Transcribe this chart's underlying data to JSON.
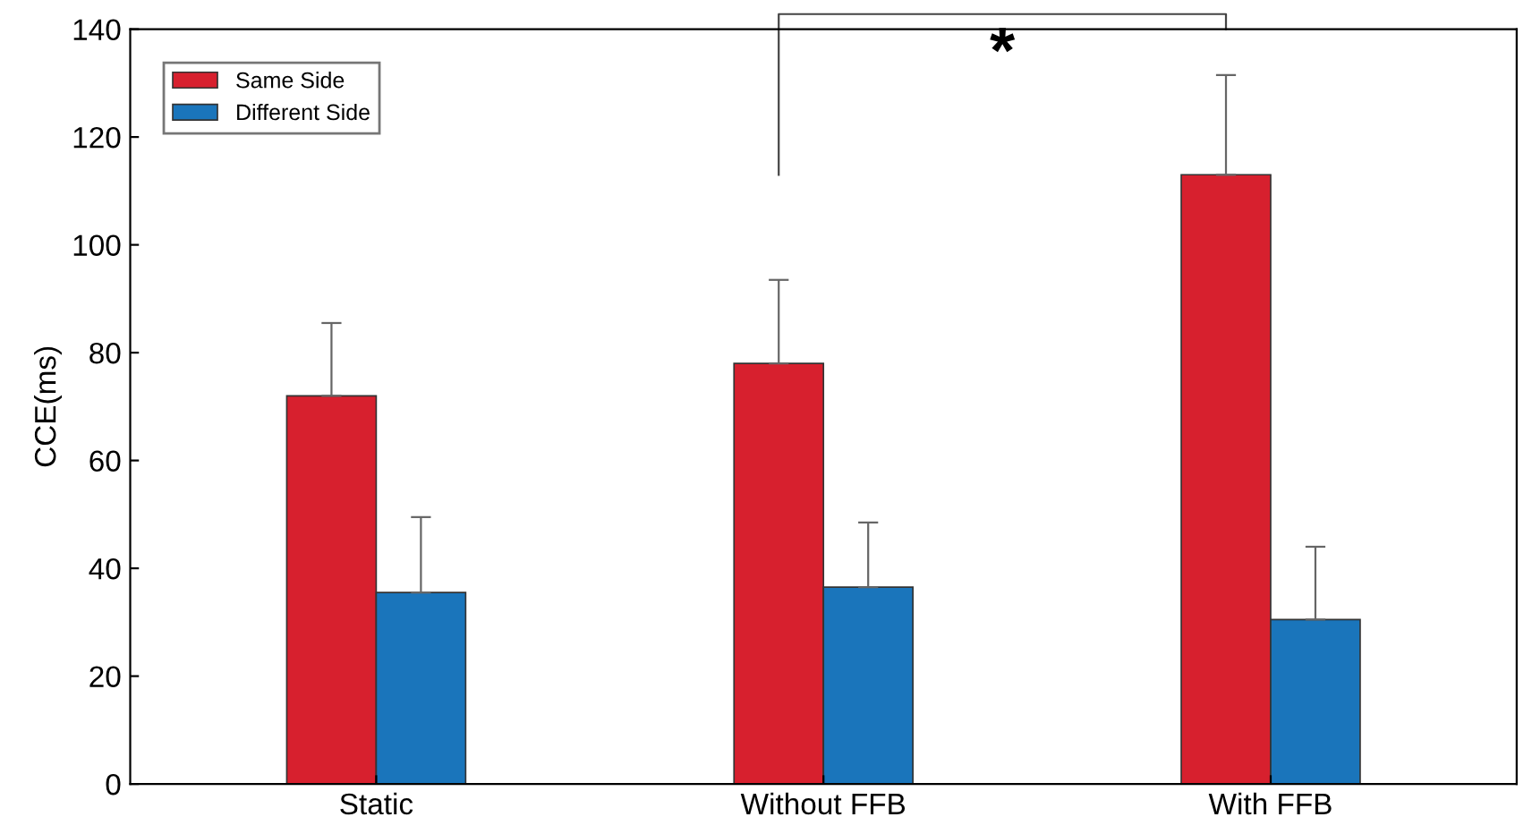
{
  "chart_data": {
    "type": "bar",
    "ylabel": "CCE(ms)",
    "categories": [
      "Static",
      "Without FFB",
      "With FFB"
    ],
    "series": [
      {
        "name": "Same Side",
        "color": "#d7202e",
        "values": [
          72,
          78,
          113
        ],
        "errors": [
          [
            72,
            85.5
          ],
          [
            78,
            93.5
          ],
          [
            113,
            131.5
          ]
        ]
      },
      {
        "name": "Different Side",
        "color": "#1a75bb",
        "values": [
          35.5,
          36.5,
          30.5
        ],
        "errors": [
          [
            35.5,
            49.5
          ],
          [
            36.5,
            48.5
          ],
          [
            30.5,
            44
          ]
        ]
      }
    ],
    "ylim": [
      0,
      140
    ],
    "yticks": [
      0,
      20,
      40,
      60,
      80,
      100,
      120,
      140
    ],
    "grid": false,
    "legend": "top left",
    "annotations": [
      "*"
    ]
  }
}
